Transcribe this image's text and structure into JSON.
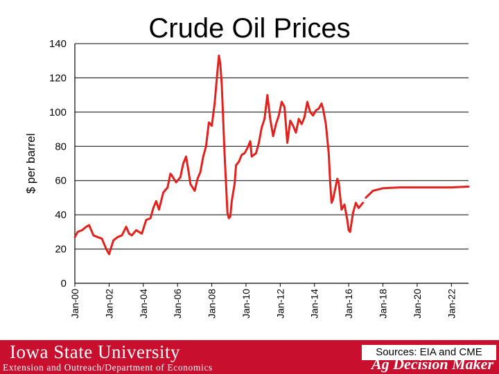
{
  "slide": {
    "title": "Crude Oil Prices",
    "footer": {
      "university": "Iowa State University",
      "department": "Extension and Outreach/Department of Economics",
      "sources": "Sources: EIA and CME",
      "brand": "Ag Decision Maker"
    }
  },
  "colors": {
    "line": "#e3201b",
    "footer": "#c8102e",
    "grid": "#000000"
  },
  "chart_data": {
    "type": "line",
    "title": "Crude Oil Prices",
    "xlabel": "",
    "ylabel": "$ per barrel",
    "ylim": [
      0,
      140
    ],
    "yticks": [
      0,
      20,
      40,
      60,
      80,
      100,
      120,
      140
    ],
    "xlim": [
      "2000-01",
      "2023-01"
    ],
    "xticks": [
      "Jan-00",
      "Jan-02",
      "Jan-04",
      "Jan-06",
      "Jan-08",
      "Jan-10",
      "Jan-12",
      "Jan-14",
      "Jan-16",
      "Jan-18",
      "Jan-20",
      "Jan-22"
    ],
    "grid": "horizontal",
    "legend": "none",
    "series": [
      {
        "name": "",
        "segment": "history",
        "x": [
          "2000-01",
          "2000-03",
          "2000-06",
          "2000-09",
          "2000-11",
          "2001-02",
          "2001-05",
          "2001-08",
          "2001-11",
          "2002-01",
          "2002-04",
          "2002-07",
          "2002-10",
          "2003-01",
          "2003-03",
          "2003-05",
          "2003-08",
          "2003-12",
          "2004-03",
          "2004-06",
          "2004-08",
          "2004-10",
          "2004-12",
          "2005-03",
          "2005-06",
          "2005-08",
          "2005-09",
          "2005-12",
          "2006-03",
          "2006-05",
          "2006-07",
          "2006-09",
          "2006-10",
          "2007-01",
          "2007-03",
          "2007-05",
          "2007-07",
          "2007-09",
          "2007-11",
          "2008-01",
          "2008-03",
          "2008-05",
          "2008-06",
          "2008-07",
          "2008-08",
          "2008-10",
          "2008-12",
          "2009-01",
          "2009-02",
          "2009-03",
          "2009-05",
          "2009-06",
          "2009-08",
          "2009-10",
          "2009-12",
          "2010-02",
          "2010-04",
          "2010-05",
          "2010-08",
          "2010-10",
          "2010-12",
          "2011-02",
          "2011-04",
          "2011-06",
          "2011-08",
          "2011-10",
          "2011-12",
          "2012-02",
          "2012-04",
          "2012-06",
          "2012-08",
          "2012-10",
          "2012-12",
          "2013-02",
          "2013-04",
          "2013-06",
          "2013-08",
          "2013-10",
          "2013-12",
          "2014-02",
          "2014-04",
          "2014-06",
          "2014-07",
          "2014-09",
          "2014-11",
          "2014-12",
          "2015-01",
          "2015-02",
          "2015-04",
          "2015-05",
          "2015-06",
          "2015-08",
          "2015-10",
          "2015-12",
          "2016-01",
          "2016-02",
          "2016-04",
          "2016-06",
          "2016-08",
          "2016-09",
          "2016-11"
        ],
        "values": [
          27,
          30,
          31,
          33,
          34,
          28,
          27,
          26,
          20,
          17,
          25,
          27,
          28,
          33,
          29,
          28,
          31,
          29,
          37,
          38,
          44,
          48,
          43,
          53,
          56,
          64,
          63,
          59,
          62,
          70,
          74,
          64,
          58,
          54,
          61,
          65,
          74,
          80,
          94,
          92,
          105,
          124,
          133,
          128,
          116,
          75,
          41,
          38,
          39,
          48,
          58,
          69,
          71,
          75,
          76,
          79,
          83,
          74,
          76,
          82,
          91,
          96,
          110,
          96,
          86,
          93,
          98,
          106,
          103,
          82,
          95,
          92,
          88,
          96,
          93,
          97,
          106,
          100,
          98,
          101,
          102,
          105,
          102,
          93,
          76,
          59,
          47,
          49,
          57,
          61,
          59,
          43,
          46,
          37,
          31,
          30,
          41,
          47,
          44,
          45,
          47
        ]
      },
      {
        "name": "",
        "segment": "futures",
        "x": [
          "2017-01",
          "2017-06",
          "2018-01",
          "2019-01",
          "2020-01",
          "2021-01",
          "2022-01",
          "2023-01"
        ],
        "values": [
          50,
          54,
          55.5,
          56,
          56,
          56,
          56,
          56.5
        ]
      }
    ]
  }
}
